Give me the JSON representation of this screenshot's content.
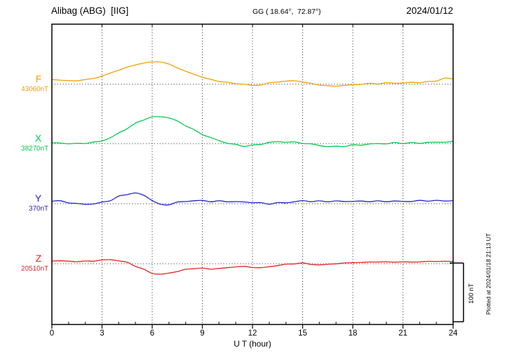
{
  "header": {
    "station_title": "Alibag (ABG)  [IIG]",
    "geo_coords": "GG ( 18.64°,  72.87°)",
    "date": "2024/01/12"
  },
  "axes": {
    "x_label": "U T (hour)"
  },
  "scale_bar": {
    "label": "100 nT",
    "nT": 100
  },
  "side_note": "Plotted at 2024/01/18 21:13 UT",
  "chart_data": {
    "type": "line",
    "title": "Alibag (ABG) [IIG] magnetogram for 2024/01/12",
    "xlabel": "U T (hour)",
    "x_range": [
      0,
      24
    ],
    "x_ticks": [
      0,
      3,
      6,
      9,
      12,
      15,
      18,
      21,
      24
    ],
    "x_step_hours": 0.5,
    "scale_bar_nT": 100,
    "grid": "dotted vertical at 3h intervals, dotted horizontal baselines per trace",
    "series": [
      {
        "name": "F",
        "baseline_value_label": "43060nT",
        "color": "#f0a000",
        "deltas_nT": [
          8,
          7,
          6,
          6,
          8,
          10,
          14,
          19,
          24,
          29,
          33,
          36,
          38,
          38,
          34,
          28,
          22,
          17,
          12,
          8,
          5,
          3,
          1,
          0,
          -2,
          -1,
          2,
          4,
          5,
          6,
          4,
          1,
          -1,
          -3,
          -3,
          -2,
          -1,
          0,
          1,
          1,
          2,
          2,
          2,
          3,
          3,
          4,
          6,
          10,
          9
        ]
      },
      {
        "name": "X",
        "baseline_value_label": "38270nT",
        "color": "#00c84b",
        "deltas_nT": [
          1,
          1,
          0,
          0,
          1,
          2,
          5,
          10,
          18,
          26,
          34,
          41,
          45,
          46,
          44,
          38,
          31,
          23,
          16,
          10,
          5,
          1,
          -2,
          -4,
          -3,
          -1,
          2,
          3,
          3,
          2,
          1,
          -1,
          -3,
          -5,
          -5,
          -4,
          -3,
          -2,
          -1,
          0,
          0,
          1,
          1,
          1,
          1,
          2,
          2,
          3,
          3
        ]
      },
      {
        "name": "Y",
        "baseline_value_label": "370nT",
        "color": "#2222cc",
        "deltas_nT": [
          5,
          4,
          2,
          0,
          -1,
          0,
          2,
          6,
          12,
          16,
          18,
          14,
          6,
          -2,
          -1,
          2,
          4,
          5,
          5,
          4,
          4,
          4,
          3,
          3,
          2,
          1,
          0,
          1,
          2,
          3,
          5,
          4,
          4,
          4,
          4,
          4,
          4,
          4,
          4,
          4,
          4,
          4,
          4,
          4,
          5,
          5,
          5,
          5,
          5
        ]
      },
      {
        "name": "Z",
        "baseline_value_label": "20510nT",
        "color": "#e32222",
        "deltas_nT": [
          5,
          5,
          4,
          4,
          4,
          5,
          6,
          7,
          5,
          2,
          -4,
          -10,
          -16,
          -18,
          -16,
          -13,
          -10,
          -8,
          -8,
          -9,
          -8,
          -7,
          -5,
          -5,
          -6,
          -7,
          -5,
          -3,
          -1,
          0,
          1,
          -1,
          -2,
          -1,
          0,
          1,
          2,
          2,
          3,
          3,
          3,
          3,
          3,
          3,
          3,
          4,
          4,
          4,
          4
        ]
      }
    ]
  }
}
